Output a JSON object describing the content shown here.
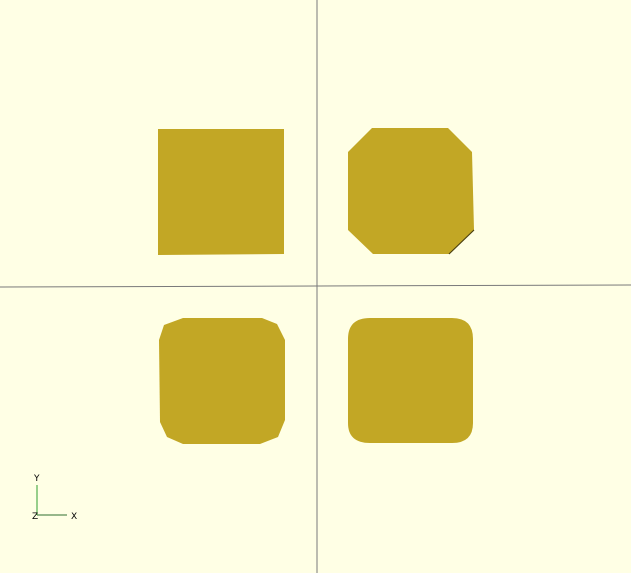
{
  "viewport": {
    "background": "#ffffe5",
    "shape_color": "#c2a725",
    "axis_line_color": "#7a7a7a"
  },
  "axes_indicator": {
    "x_label": "X",
    "y_label": "Y",
    "z_label": "Z"
  },
  "shapes": [
    {
      "name": "square",
      "corner_style": "sharp"
    },
    {
      "name": "octagon-square",
      "corner_style": "chamfered"
    },
    {
      "name": "faceted-rounded-square",
      "corner_style": "coarse-rounded"
    },
    {
      "name": "rounded-square",
      "corner_style": "smooth-rounded"
    }
  ]
}
